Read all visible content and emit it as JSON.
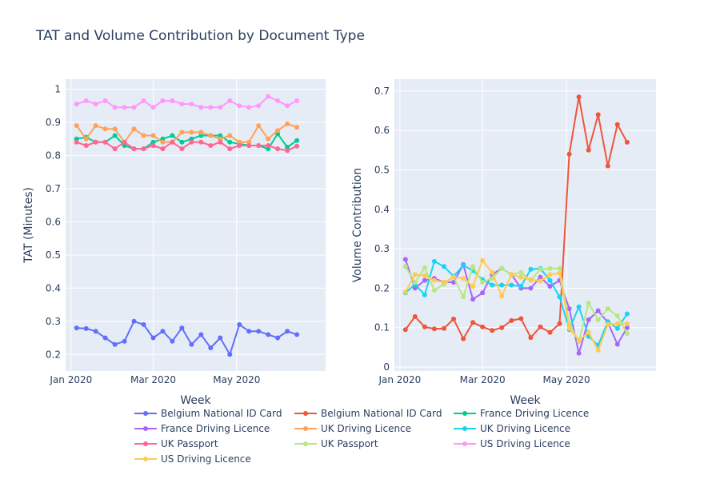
{
  "title": "TAT and Volume Contribution by Document Type",
  "colors": {
    "plot_bg": "#e5ecf6",
    "grid": "#ffffff",
    "text": "#2a3f5f"
  },
  "legend": {
    "placement": "bottom",
    "entries": [
      {
        "name": "Belgium National ID Card",
        "color": "#636efa"
      },
      {
        "name": "Belgium National ID Card",
        "color": "#ef553b"
      },
      {
        "name": "France Driving Licence",
        "color": "#00cc96"
      },
      {
        "name": "France Driving Licence",
        "color": "#ab63fa"
      },
      {
        "name": "UK Driving Licence",
        "color": "#ffa15a"
      },
      {
        "name": "UK Driving Licence",
        "color": "#19d3f3"
      },
      {
        "name": "UK Passport",
        "color": "#ff6692"
      },
      {
        "name": "UK Passport",
        "color": "#b6e880"
      },
      {
        "name": "US Driving Licence",
        "color": "#ff97ff"
      },
      {
        "name": "US Driving Licence",
        "color": "#fecb52"
      }
    ]
  },
  "chart_data": [
    {
      "type": "line",
      "xlabel": "Week",
      "ylabel": "TAT (Minutes)",
      "grid": true,
      "x_ticks": [
        {
          "date": "2020-01-01",
          "label": "Jan 2020"
        },
        {
          "date": "2020-03-01",
          "label": "Mar 2020"
        },
        {
          "date": "2020-05-01",
          "label": "May 2020"
        }
      ],
      "xlim": [
        "2019-12-28",
        "2020-07-05"
      ],
      "ylim": [
        0.15,
        1.03
      ],
      "y_ticks": [
        {
          "value": 0.2,
          "label": "0.2"
        },
        {
          "value": 0.3,
          "label": "0.3"
        },
        {
          "value": 0.4,
          "label": "0.4"
        },
        {
          "value": 0.5,
          "label": "0.5"
        },
        {
          "value": 0.6,
          "label": "0.6"
        },
        {
          "value": 0.7,
          "label": "0.7"
        },
        {
          "value": 0.8,
          "label": "0.8"
        },
        {
          "value": 0.9,
          "label": "0.9"
        },
        {
          "value": 1.0,
          "label": "1"
        }
      ],
      "x": [
        "2020-01-05",
        "2020-01-12",
        "2020-01-19",
        "2020-01-26",
        "2020-02-02",
        "2020-02-09",
        "2020-02-16",
        "2020-02-23",
        "2020-03-01",
        "2020-03-08",
        "2020-03-15",
        "2020-03-22",
        "2020-03-29",
        "2020-04-05",
        "2020-04-12",
        "2020-04-19",
        "2020-04-26",
        "2020-05-03",
        "2020-05-10",
        "2020-05-17",
        "2020-05-24",
        "2020-05-31",
        "2020-06-07",
        "2020-06-14",
        "2020-06-21"
      ],
      "series": [
        {
          "name": "Belgium National ID Card",
          "color": "#636efa",
          "values": [
            0.28,
            0.278,
            0.27,
            0.25,
            0.23,
            0.24,
            0.3,
            0.29,
            0.25,
            0.27,
            0.24,
            0.28,
            0.23,
            0.26,
            0.22,
            0.25,
            0.2,
            0.29,
            0.27,
            0.27,
            0.26,
            0.25,
            0.27,
            0.26,
            null
          ]
        },
        {
          "name": "France Driving Licence",
          "color": "#00cc96",
          "values": [
            0.85,
            0.855,
            0.84,
            0.84,
            0.86,
            0.83,
            0.82,
            0.82,
            0.84,
            0.85,
            0.86,
            0.84,
            0.85,
            0.86,
            0.86,
            0.86,
            0.84,
            0.835,
            0.83,
            0.83,
            0.82,
            0.865,
            0.825,
            0.845,
            null
          ]
        },
        {
          "name": "UK Driving Licence",
          "color": "#ffa15a",
          "values": [
            0.89,
            0.85,
            0.89,
            0.88,
            0.88,
            0.84,
            0.88,
            0.86,
            0.86,
            0.84,
            0.84,
            0.87,
            0.87,
            0.87,
            0.86,
            0.85,
            0.86,
            0.84,
            0.84,
            0.89,
            0.85,
            0.875,
            0.895,
            0.885,
            null
          ]
        },
        {
          "name": "UK Passport",
          "color": "#ff6692",
          "values": [
            0.84,
            0.83,
            0.84,
            0.84,
            0.82,
            0.84,
            0.82,
            0.82,
            0.83,
            0.82,
            0.84,
            0.82,
            0.84,
            0.84,
            0.83,
            0.84,
            0.82,
            0.83,
            0.83,
            0.83,
            0.83,
            0.82,
            0.815,
            0.828,
            null
          ]
        },
        {
          "name": "US Driving Licence",
          "color": "#ff97ff",
          "values": [
            0.955,
            0.965,
            0.955,
            0.965,
            0.945,
            0.945,
            0.945,
            0.965,
            0.945,
            0.965,
            0.965,
            0.955,
            0.955,
            0.945,
            0.945,
            0.945,
            0.965,
            0.95,
            0.945,
            0.95,
            0.978,
            0.965,
            0.95,
            0.965,
            null
          ]
        }
      ]
    },
    {
      "type": "line",
      "xlabel": "Week",
      "ylabel": "Volume Contribution",
      "grid": true,
      "x_ticks": [
        {
          "date": "2020-01-01",
          "label": "Jan 2020"
        },
        {
          "date": "2020-03-01",
          "label": "Mar 2020"
        },
        {
          "date": "2020-05-01",
          "label": "May 2020"
        }
      ],
      "xlim": [
        "2019-12-28",
        "2020-07-05"
      ],
      "ylim": [
        -0.01,
        0.73
      ],
      "y_ticks": [
        {
          "value": 0,
          "label": "0"
        },
        {
          "value": 0.1,
          "label": "0.1"
        },
        {
          "value": 0.2,
          "label": "0.2"
        },
        {
          "value": 0.3,
          "label": "0.3"
        },
        {
          "value": 0.4,
          "label": "0.4"
        },
        {
          "value": 0.5,
          "label": "0.5"
        },
        {
          "value": 0.6,
          "label": "0.6"
        },
        {
          "value": 0.7,
          "label": "0.7"
        }
      ],
      "x": [
        "2020-01-05",
        "2020-01-12",
        "2020-01-19",
        "2020-01-26",
        "2020-02-02",
        "2020-02-09",
        "2020-02-16",
        "2020-02-23",
        "2020-03-01",
        "2020-03-08",
        "2020-03-15",
        "2020-03-22",
        "2020-03-29",
        "2020-04-05",
        "2020-04-12",
        "2020-04-19",
        "2020-04-26",
        "2020-05-03",
        "2020-05-10",
        "2020-05-17",
        "2020-05-24",
        "2020-05-31",
        "2020-06-07",
        "2020-06-14",
        "2020-06-21"
      ],
      "series": [
        {
          "name": "Belgium National ID Card",
          "color": "#ef553b",
          "values": [
            0.095,
            0.128,
            0.102,
            0.097,
            0.098,
            0.122,
            0.072,
            0.113,
            0.102,
            0.093,
            0.1,
            0.118,
            0.123,
            0.075,
            0.102,
            0.088,
            0.11,
            0.54,
            0.685,
            0.55,
            0.64,
            0.51,
            0.615,
            0.57,
            null
          ]
        },
        {
          "name": "France Driving Licence",
          "color": "#ab63fa",
          "values": [
            0.273,
            0.2,
            0.22,
            0.225,
            0.215,
            0.215,
            0.26,
            0.172,
            0.188,
            0.235,
            0.25,
            0.235,
            0.2,
            0.2,
            0.228,
            0.205,
            0.22,
            0.148,
            0.035,
            0.12,
            0.143,
            0.113,
            0.058,
            0.1,
            null
          ]
        },
        {
          "name": "UK Driving Licence",
          "color": "#19d3f3",
          "values": [
            0.188,
            0.21,
            0.183,
            0.268,
            0.255,
            0.23,
            0.258,
            0.245,
            0.222,
            0.208,
            0.208,
            0.208,
            0.205,
            0.248,
            0.25,
            0.22,
            0.178,
            0.095,
            0.153,
            0.078,
            0.055,
            0.115,
            0.098,
            0.135,
            null
          ]
        },
        {
          "name": "UK Passport",
          "color": "#b6e880",
          "values": [
            0.255,
            0.215,
            0.252,
            0.195,
            0.21,
            0.228,
            0.178,
            0.255,
            0.215,
            0.225,
            0.25,
            0.235,
            0.24,
            0.22,
            0.248,
            0.25,
            0.25,
            0.11,
            0.065,
            0.162,
            0.12,
            0.148,
            0.13,
            0.085,
            null
          ]
        },
        {
          "name": "US Driving Licence",
          "color": "#fecb52",
          "values": [
            0.19,
            0.235,
            0.232,
            0.22,
            0.215,
            0.228,
            0.225,
            0.205,
            0.27,
            0.24,
            0.18,
            0.235,
            0.228,
            0.222,
            0.218,
            0.235,
            0.238,
            0.098,
            0.068,
            0.088,
            0.043,
            0.108,
            0.11,
            0.11,
            null
          ]
        }
      ]
    }
  ]
}
